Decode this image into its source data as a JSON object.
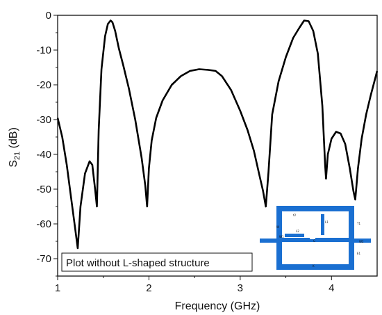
{
  "chart_data": {
    "type": "line",
    "xlabel": "Frequency (GHz)",
    "ylabel_main": "S",
    "ylabel_sub": "21",
    "ylabel_unit": " (dB)",
    "xlim": [
      1,
      4.5
    ],
    "ylim": [
      -75,
      0
    ],
    "x_ticks": [
      1,
      2,
      3,
      4
    ],
    "x_tick_labels": [
      "1",
      "2",
      "3",
      "4"
    ],
    "y_ticks": [
      0,
      -10,
      -20,
      -30,
      -40,
      -50,
      -60,
      -70
    ],
    "y_tick_labels": [
      "0",
      "-10",
      "-20",
      "-30",
      "-40",
      "-50",
      "-60",
      "-70"
    ],
    "grid": false,
    "series": [
      {
        "color": "#000000",
        "x": [
          1.0,
          1.05,
          1.1,
          1.15,
          1.19,
          1.22,
          1.25,
          1.3,
          1.35,
          1.38,
          1.41,
          1.43,
          1.45,
          1.48,
          1.52,
          1.55,
          1.58,
          1.6,
          1.63,
          1.67,
          1.72,
          1.78,
          1.85,
          1.92,
          1.96,
          1.98,
          2.0,
          2.03,
          2.08,
          2.15,
          2.25,
          2.35,
          2.45,
          2.55,
          2.65,
          2.73,
          2.8,
          2.9,
          3.0,
          3.08,
          3.15,
          3.21,
          3.25,
          3.28,
          3.31,
          3.35,
          3.42,
          3.5,
          3.58,
          3.65,
          3.7,
          3.75,
          3.8,
          3.85,
          3.9,
          3.93,
          3.94,
          3.96,
          4.0,
          4.05,
          4.1,
          4.15,
          4.2,
          4.24,
          4.26,
          4.29,
          4.33,
          4.38,
          4.43,
          4.48,
          4.5
        ],
        "y": [
          -29.5,
          -35.0,
          -43.0,
          -53.0,
          -61.0,
          -67.0,
          -55.0,
          -45.5,
          -42.0,
          -43.0,
          -50.0,
          -55.0,
          -33.0,
          -15.5,
          -6.0,
          -2.5,
          -1.5,
          -2.0,
          -4.5,
          -9.5,
          -14.5,
          -21.0,
          -30.0,
          -41.0,
          -49.0,
          -55.0,
          -44.0,
          -36.0,
          -29.5,
          -24.5,
          -20.0,
          -17.5,
          -16.0,
          -15.5,
          -15.7,
          -16.0,
          -17.5,
          -21.5,
          -27.5,
          -33.0,
          -39.0,
          -46.0,
          -50.5,
          -55.0,
          -45.0,
          -28.5,
          -19.0,
          -12.0,
          -6.5,
          -3.5,
          -1.5,
          -1.7,
          -4.5,
          -11.0,
          -26.0,
          -43.0,
          -47.0,
          -40.0,
          -35.5,
          -33.5,
          -34.0,
          -37.0,
          -44.0,
          -50.5,
          -53.0,
          -44.0,
          -35.5,
          -28.5,
          -23.0,
          -18.0,
          -16.0
        ]
      }
    ],
    "annotation": "Plot without L-shaped structure",
    "inset_labels": {
      "t2": "t2",
      "l1": "L1",
      "l2": "L2",
      "t1": "T1",
      "w1": "W1",
      "wk": "W",
      "e1": "E1",
      "g": "G",
      "k": "K",
      "w2": "W2",
      "wbt": "W1"
    }
  }
}
